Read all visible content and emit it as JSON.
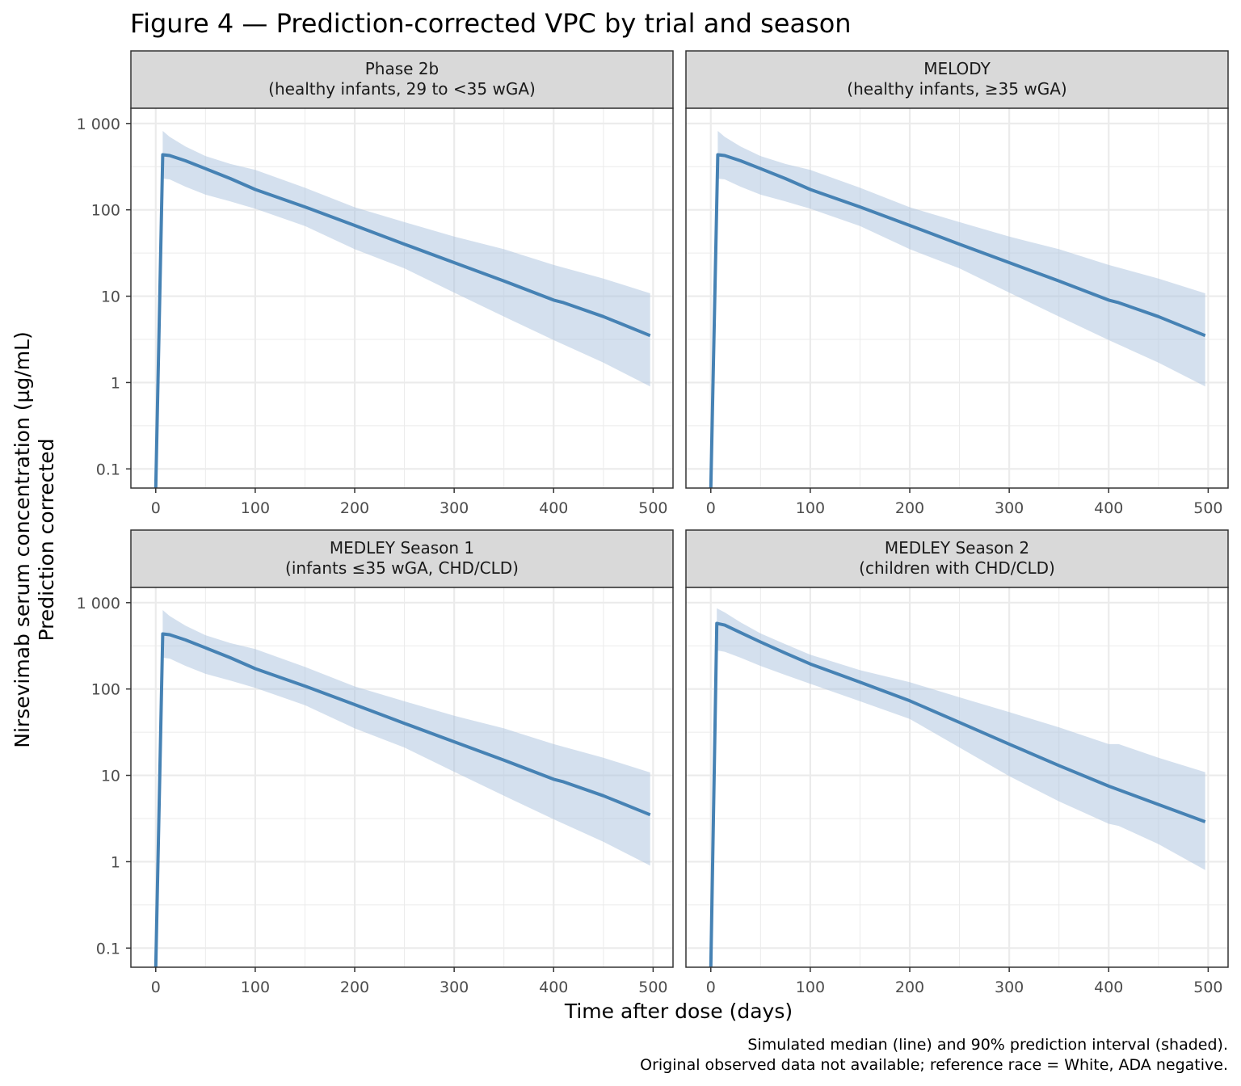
{
  "chart_data": {
    "type": "line",
    "title": "Figure 4 — Prediction-corrected VPC by trial and season",
    "xlabel": "Time after dose (days)",
    "ylabel": [
      "Nirsevimab serum concentration (µg/mL)",
      "Prediction corrected"
    ],
    "yscale": "log10",
    "xlim": [
      -25,
      520
    ],
    "ylim": [
      0.06,
      1500
    ],
    "x_ticks": [
      0,
      100,
      200,
      300,
      400,
      500
    ],
    "x_tick_labels": [
      "0",
      "100",
      "200",
      "300",
      "400",
      "500"
    ],
    "y_ticks": [
      0.1,
      1,
      10,
      100,
      1000
    ],
    "y_tick_labels": [
      "0.1",
      "1",
      "10",
      "100",
      "1 000"
    ],
    "grid": true,
    "colors": {
      "line": "#4682B4",
      "band": "#A9C2DD",
      "strip": "#D9D9D9"
    },
    "caption": [
      "Simulated median (line) and 90% prediction interval (shaded).",
      "Original observed data not available; reference race = White, ADA negative."
    ],
    "panels": [
      {
        "strip": [
          "Phase 2b",
          "(healthy infants, 29 to <35 wGA)"
        ],
        "median": {
          "x": [
            0,
            7,
            14,
            30,
            50,
            75,
            100,
            150,
            200,
            250,
            300,
            350,
            400,
            410,
            450,
            497
          ],
          "y": [
            0.06,
            435,
            425,
            370,
            300,
            230,
            172,
            108,
            66,
            40,
            24.5,
            15,
            9,
            8.4,
            5.8,
            3.5
          ]
        },
        "band": {
          "x": [
            7,
            14,
            30,
            50,
            75,
            100,
            150,
            200,
            250,
            300,
            350,
            400,
            450,
            497
          ],
          "lower": [
            230,
            225,
            185,
            150,
            125,
            103,
            65,
            35,
            21,
            11,
            5.8,
            3.1,
            1.7,
            0.9
          ],
          "upper": [
            820,
            700,
            540,
            420,
            340,
            290,
            180,
            107,
            72,
            49,
            35,
            23,
            16,
            10.8
          ]
        }
      },
      {
        "strip": [
          "MELODY",
          "(healthy infants, ≥35 wGA)"
        ],
        "median": {
          "x": [
            0,
            7,
            14,
            30,
            50,
            75,
            100,
            150,
            200,
            250,
            300,
            350,
            400,
            410,
            450,
            497
          ],
          "y": [
            0.06,
            435,
            425,
            370,
            300,
            230,
            172,
            108,
            66,
            40,
            24.5,
            15,
            9,
            8.4,
            5.8,
            3.5
          ]
        },
        "band": {
          "x": [
            7,
            14,
            30,
            50,
            75,
            100,
            150,
            200,
            250,
            300,
            350,
            400,
            450,
            497
          ],
          "lower": [
            230,
            225,
            185,
            150,
            125,
            103,
            65,
            35,
            21,
            11,
            5.8,
            3.1,
            1.7,
            0.9
          ],
          "upper": [
            820,
            700,
            540,
            420,
            340,
            290,
            180,
            107,
            72,
            49,
            35,
            23,
            16,
            10.8
          ]
        }
      },
      {
        "strip": [
          "MEDLEY Season 1",
          "(infants ≤35 wGA, CHD/CLD)"
        ],
        "median": {
          "x": [
            0,
            7,
            14,
            30,
            50,
            75,
            100,
            150,
            200,
            250,
            300,
            350,
            400,
            410,
            450,
            497
          ],
          "y": [
            0.06,
            435,
            425,
            370,
            300,
            230,
            172,
            108,
            66,
            40,
            24.5,
            15,
            9,
            8.4,
            5.8,
            3.5
          ]
        },
        "band": {
          "x": [
            7,
            14,
            30,
            50,
            75,
            100,
            150,
            200,
            250,
            300,
            350,
            400,
            450,
            497
          ],
          "lower": [
            230,
            225,
            185,
            150,
            125,
            103,
            65,
            35,
            21,
            11,
            5.8,
            3.1,
            1.7,
            0.9
          ],
          "upper": [
            820,
            700,
            540,
            420,
            340,
            290,
            180,
            107,
            72,
            49,
            35,
            23,
            16,
            10.8
          ]
        }
      },
      {
        "strip": [
          "MEDLEY Season 2",
          "(children with CHD/CLD)"
        ],
        "median": {
          "x": [
            0,
            6,
            14,
            30,
            50,
            75,
            100,
            150,
            200,
            250,
            300,
            350,
            400,
            450,
            497
          ],
          "y": [
            0.06,
            575,
            550,
            450,
            350,
            260,
            195,
            120,
            73,
            41,
            23,
            13,
            7.5,
            4.6,
            2.9
          ]
        },
        "band": {
          "x": [
            6,
            14,
            30,
            50,
            75,
            100,
            150,
            200,
            250,
            300,
            350,
            400,
            410,
            450,
            497
          ],
          "lower": [
            280,
            270,
            230,
            185,
            145,
            115,
            72,
            45,
            21,
            9.8,
            5,
            2.75,
            2.6,
            1.6,
            0.8
          ],
          "upper": [
            860,
            770,
            590,
            440,
            330,
            250,
            165,
            120,
            80,
            54,
            36,
            23,
            23,
            16,
            10.9
          ]
        }
      }
    ]
  }
}
